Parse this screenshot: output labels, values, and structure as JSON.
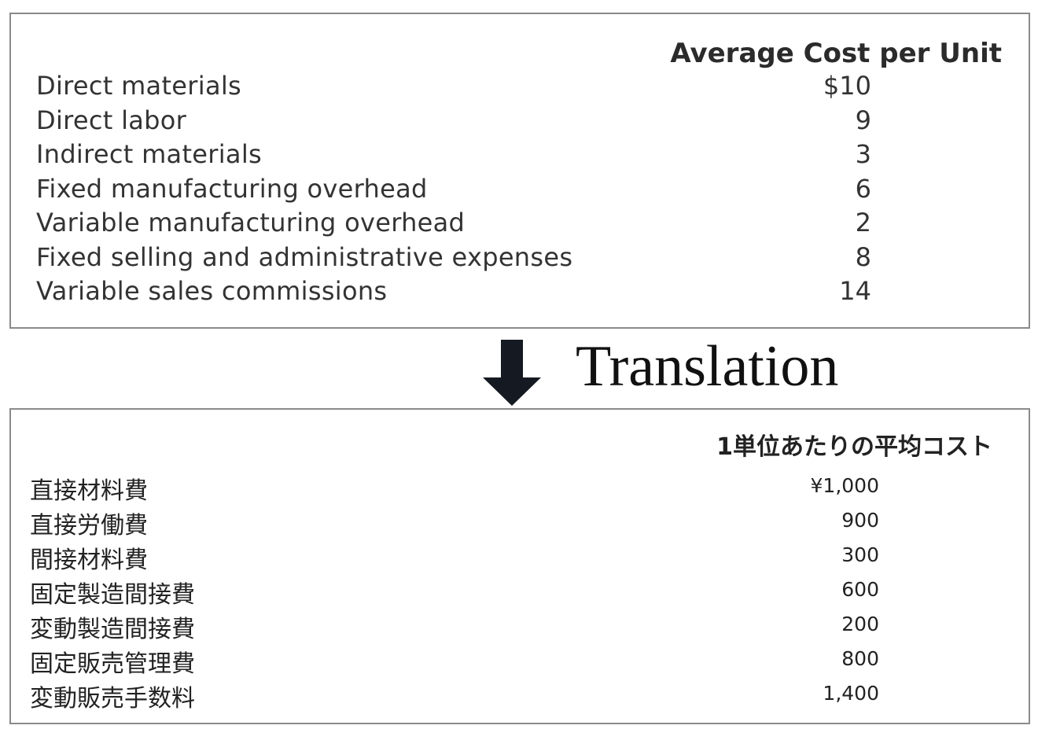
{
  "english_table": {
    "header": "Average Cost per Unit",
    "rows": [
      {
        "label": "Direct materials",
        "value": "$10"
      },
      {
        "label": "Direct labor",
        "value": "9"
      },
      {
        "label": "Indirect materials",
        "value": "3"
      },
      {
        "label": "Fixed manufacturing overhead",
        "value": "6"
      },
      {
        "label": "Variable manufacturing overhead",
        "value": "2"
      },
      {
        "label": "Fixed selling and administrative expenses",
        "value": "8"
      },
      {
        "label": "Variable sales commissions",
        "value": "14"
      }
    ]
  },
  "translation": {
    "label": "Translation",
    "icon": "down-arrow-icon"
  },
  "japanese_table": {
    "header": "1単位あたりの平均コスト",
    "rows": [
      {
        "label": "直接材料費",
        "value": "¥1,000"
      },
      {
        "label": "直接労働費",
        "value": "900"
      },
      {
        "label": "間接材料費",
        "value": "300"
      },
      {
        "label": "固定製造間接費",
        "value": "600"
      },
      {
        "label": "変動製造間接費",
        "value": "200"
      },
      {
        "label": "固定販売管理費",
        "value": "800"
      },
      {
        "label": "変動販売手数料",
        "value": "1,400"
      }
    ]
  }
}
